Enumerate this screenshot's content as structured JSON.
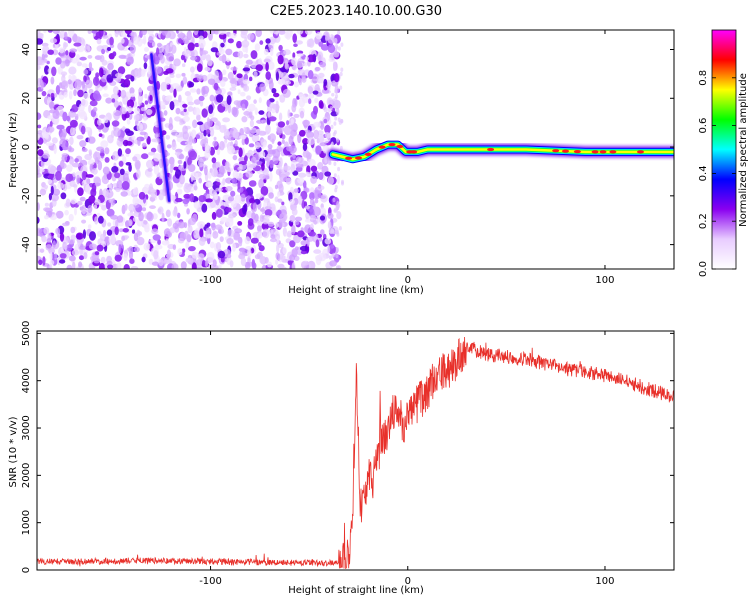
{
  "title": "C2E5.2023.140.10.00.G30",
  "chart_data": [
    {
      "type": "heatmap",
      "xlabel": "Height of straight line (km)",
      "ylabel": "Frequency (Hz)",
      "xlim": [
        -188,
        135
      ],
      "ylim": [
        -50,
        48
      ],
      "xticks": [
        -100,
        0,
        100
      ],
      "yticks": [
        -40,
        -20,
        0,
        20,
        40
      ],
      "colorbar": {
        "label": "Normalized spectral amplitude",
        "range": [
          0,
          1
        ],
        "ticks": [
          "0.0",
          "0.2",
          "0.4",
          "0.6",
          "0.8"
        ],
        "colormap": "hsv-like",
        "stops": [
          "#ffffff",
          "#e8ccff",
          "#8a00f0",
          "#0000ff",
          "#00ffff",
          "#00ff00",
          "#ffff00",
          "#ff0000",
          "#ff00ff"
        ]
      },
      "noise_region_x": [
        -188,
        -38
      ],
      "streak": [
        {
          "x": -130,
          "y": 38
        },
        {
          "x": -121,
          "y": -22
        }
      ],
      "ridge": [
        {
          "x": -38,
          "y": -3
        },
        {
          "x": -33,
          "y": -4
        },
        {
          "x": -28,
          "y": -5
        },
        {
          "x": -22,
          "y": -4
        },
        {
          "x": -16,
          "y": -1
        },
        {
          "x": -10,
          "y": 1
        },
        {
          "x": -5,
          "y": 1
        },
        {
          "x": -1,
          "y": -2
        },
        {
          "x": 5,
          "y": -2
        },
        {
          "x": 10,
          "y": -1
        },
        {
          "x": 30,
          "y": -1
        },
        {
          "x": 60,
          "y": -1
        },
        {
          "x": 90,
          "y": -2
        },
        {
          "x": 110,
          "y": -2
        },
        {
          "x": 135,
          "y": -2
        }
      ]
    },
    {
      "type": "line",
      "xlabel": "Height of straight line (km)",
      "ylabel": "SNR (10 * v/v)",
      "xlim": [
        -188,
        135
      ],
      "ylim": [
        0,
        5050
      ],
      "xticks": [
        -100,
        0,
        100
      ],
      "yticks": [
        0,
        1000,
        2000,
        3000,
        4000,
        5000
      ],
      "color": "#e8302a",
      "series": [
        {
          "x": [
            -188,
            -170,
            -150,
            -130,
            -110,
            -90,
            -70,
            -50,
            -35,
            -30,
            -28,
            -26,
            -24,
            -22,
            -20,
            -18,
            -15,
            -12,
            -10,
            -8,
            -5,
            -2,
            0,
            5,
            10,
            15,
            20,
            25,
            30,
            35,
            40,
            50,
            60,
            70,
            80,
            90,
            100,
            110,
            120,
            135
          ],
          "y": [
            180,
            180,
            190,
            200,
            190,
            170,
            160,
            150,
            150,
            250,
            900,
            4200,
            1300,
            1500,
            2000,
            1800,
            2700,
            2800,
            3000,
            3300,
            3300,
            3100,
            3300,
            3500,
            3800,
            4100,
            4200,
            4400,
            4750,
            4650,
            4550,
            4500,
            4450,
            4350,
            4250,
            4200,
            4100,
            4000,
            3850,
            3650
          ]
        }
      ]
    }
  ]
}
